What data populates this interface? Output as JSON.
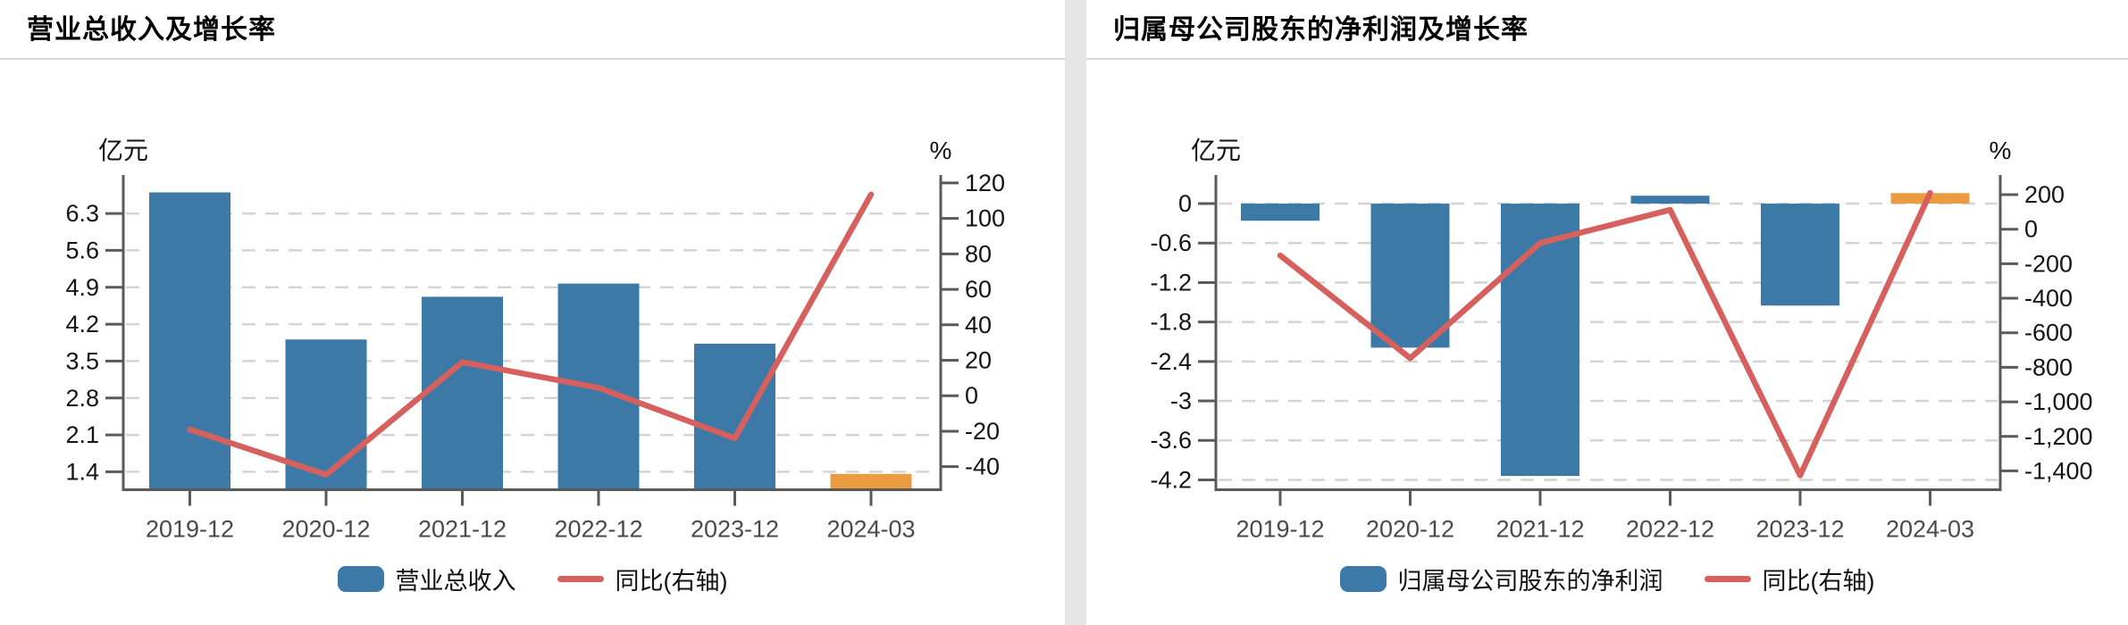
{
  "colors": {
    "bar_blue": "#3c79a6",
    "bar_orange": "#ec9c40",
    "line_red": "#d5605d",
    "axis": "#5a5a5a",
    "grid": "#d4d4d4",
    "tick_text": "#141414",
    "xlabel_text": "#4a4a4a",
    "title_text": "#000000",
    "divider": "#e6e6e6",
    "title_rule": "#d9d9d9",
    "background": "#ffffff"
  },
  "chart_data": [
    {
      "type": "bar",
      "combo": "bar+line dual axis",
      "title": "营业总收入及增长率",
      "categories": [
        "2019-12",
        "2020-12",
        "2021-12",
        "2022-12",
        "2023-12",
        "2024-03"
      ],
      "series": [
        {
          "name": "营业总收入",
          "type": "bar",
          "axis": "left",
          "unit": "亿元",
          "values": [
            6.7,
            3.91,
            4.72,
            4.97,
            3.83,
            1.36
          ],
          "bar_colors": [
            "#3c79a6",
            "#3c79a6",
            "#3c79a6",
            "#3c79a6",
            "#3c79a6",
            "#ec9c40"
          ]
        },
        {
          "name": "同比(右轴)",
          "type": "line",
          "axis": "right",
          "unit": "%",
          "values": [
            -19,
            -44.5,
            19,
            4.5,
            -24,
            113.5
          ],
          "color": "#d5605d"
        }
      ],
      "left_axis": {
        "unit": "亿元",
        "tick_labels": [
          "6.3",
          "5.6",
          "4.9",
          "4.2",
          "3.5",
          "2.8",
          "2.1",
          "1.4"
        ],
        "tick_values": [
          6.3,
          5.6,
          4.9,
          4.2,
          3.5,
          2.8,
          2.1,
          1.4
        ],
        "range": [
          1.06,
          7.03
        ]
      },
      "right_axis": {
        "unit": "%",
        "tick_labels": [
          "120",
          "100",
          "80",
          "60",
          "40",
          "20",
          "0",
          "-20",
          "-40"
        ],
        "tick_values": [
          120,
          100,
          80,
          60,
          40,
          20,
          0,
          -20,
          -40
        ],
        "range": [
          -53,
          124.5
        ]
      },
      "grid": {
        "show": true,
        "style": "dashed",
        "orientation": "horizontal"
      },
      "legend_position": "bottom"
    },
    {
      "type": "bar",
      "combo": "bar+line dual axis",
      "title": "归属母公司股东的净利润及增长率",
      "categories": [
        "2019-12",
        "2020-12",
        "2021-12",
        "2022-12",
        "2023-12",
        "2024-03"
      ],
      "series": [
        {
          "name": "归属母公司股东的净利润",
          "type": "bar",
          "axis": "left",
          "unit": "亿元",
          "values": [
            -0.26,
            -2.19,
            -4.14,
            0.12,
            -1.55,
            0.16
          ],
          "bar_colors": [
            "#3c79a6",
            "#3c79a6",
            "#3c79a6",
            "#3c79a6",
            "#3c79a6",
            "#ec9c40"
          ]
        },
        {
          "name": "同比(右轴)",
          "type": "line",
          "axis": "right",
          "unit": "%",
          "values": [
            -152,
            -747,
            -80,
            112,
            -1426,
            210
          ],
          "color": "#d5605d"
        }
      ],
      "left_axis": {
        "unit": "亿元",
        "tick_labels": [
          "0",
          "-0.6",
          "-1.2",
          "-1.8",
          "-2.4",
          "-3",
          "-3.6",
          "-4.2"
        ],
        "tick_values": [
          0,
          -0.6,
          -1.2,
          -1.8,
          -2.4,
          -3,
          -3.6,
          -4.2
        ],
        "range": [
          -4.35,
          0.435
        ]
      },
      "right_axis": {
        "unit": "%",
        "tick_labels": [
          "200",
          "0",
          "-200",
          "-400",
          "-600",
          "-800",
          "-1,000",
          "-1,200",
          "-1,400"
        ],
        "tick_values": [
          200,
          0,
          -200,
          -400,
          -600,
          -800,
          -1000,
          -1200,
          -1400
        ],
        "range": [
          -1509,
          314
        ]
      },
      "grid": {
        "show": true,
        "style": "dashed",
        "orientation": "horizontal"
      },
      "legend_position": "bottom"
    }
  ]
}
